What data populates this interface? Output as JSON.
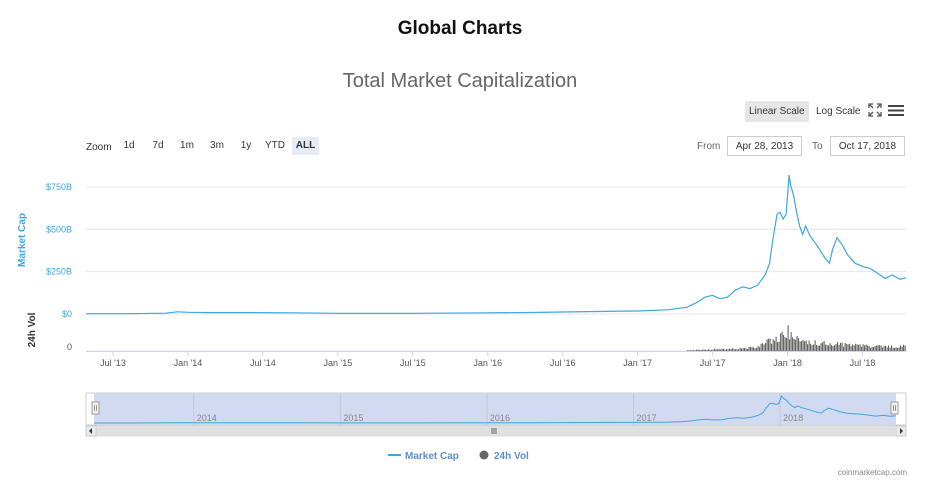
{
  "page": {
    "title": "Global Charts"
  },
  "toolbar": {
    "linear_scale": "Linear Scale",
    "log_scale": "Log Scale",
    "fullscreen_icon": "fullscreen-icon",
    "menu_icon": "menu-icon"
  },
  "range_selector": {
    "zoom_label": "Zoom",
    "buttons": [
      "1d",
      "7d",
      "1m",
      "3m",
      "1y",
      "YTD",
      "ALL"
    ],
    "selected": "ALL",
    "from_label": "From",
    "from_value": "Apr 28, 2013",
    "to_label": "To",
    "to_value": "Oct 17, 2018"
  },
  "colors": {
    "market_cap": "#3fa7dc",
    "volume": "#555555",
    "navigator_fill": "#ccd6ee"
  },
  "chart_data": {
    "type": "line",
    "title": "Total Market Capitalization",
    "x_range": [
      2013.32,
      2018.79
    ],
    "x_ticks": [
      {
        "label": "Jul '13",
        "x": 2013.5
      },
      {
        "label": "Jan '14",
        "x": 2014.0
      },
      {
        "label": "Jul '14",
        "x": 2014.5
      },
      {
        "label": "Jan '15",
        "x": 2015.0
      },
      {
        "label": "Jul '15",
        "x": 2015.5
      },
      {
        "label": "Jan '16",
        "x": 2016.0
      },
      {
        "label": "Jul '16",
        "x": 2016.5
      },
      {
        "label": "Jan '17",
        "x": 2017.0
      },
      {
        "label": "Jul '17",
        "x": 2017.5
      },
      {
        "label": "Jan '18",
        "x": 2018.0
      },
      {
        "label": "Jul '18",
        "x": 2018.5
      }
    ],
    "market_cap": {
      "name": "Market Cap",
      "axis_label": "Market Cap",
      "ylim": [
        0,
        850
      ],
      "unit": "B USD",
      "y_ticks": [
        {
          "label": "$0",
          "value": 0
        },
        {
          "label": "$250B",
          "value": 250
        },
        {
          "label": "$500B",
          "value": 500
        },
        {
          "label": "$750B",
          "value": 750
        }
      ],
      "x": [
        2013.32,
        2013.6,
        2013.85,
        2013.93,
        2014.0,
        2014.15,
        2014.4,
        2014.7,
        2015.0,
        2015.5,
        2016.0,
        2016.3,
        2016.5,
        2016.9,
        2017.0,
        2017.2,
        2017.33,
        2017.4,
        2017.45,
        2017.5,
        2017.55,
        2017.6,
        2017.65,
        2017.7,
        2017.75,
        2017.8,
        2017.85,
        2017.88,
        2017.9,
        2017.93,
        2017.95,
        2017.97,
        2017.99,
        2018.01,
        2018.02,
        2018.04,
        2018.06,
        2018.08,
        2018.1,
        2018.12,
        2018.15,
        2018.2,
        2018.25,
        2018.28,
        2018.3,
        2018.33,
        2018.37,
        2018.4,
        2018.45,
        2018.5,
        2018.55,
        2018.6,
        2018.65,
        2018.7,
        2018.75,
        2018.79
      ],
      "values": [
        1.5,
        1.5,
        5,
        13,
        10,
        8,
        8,
        7,
        4,
        4,
        7,
        9,
        12,
        17,
        18,
        25,
        40,
        70,
        100,
        110,
        90,
        100,
        140,
        160,
        150,
        170,
        230,
        300,
        430,
        590,
        600,
        560,
        590,
        820,
        760,
        700,
        600,
        520,
        470,
        520,
        460,
        400,
        330,
        300,
        380,
        450,
        400,
        350,
        300,
        280,
        270,
        240,
        210,
        230,
        205,
        215
      ]
    },
    "volume": {
      "name": "24h Vol",
      "axis_label": "24h Vol",
      "y_ticks": [
        {
          "label": "0",
          "value": 0
        }
      ],
      "ylim": [
        0,
        60
      ],
      "unit": "B USD",
      "x": [
        2017.33,
        2017.5,
        2017.65,
        2017.8,
        2017.9,
        2017.95,
        2018.0,
        2018.05,
        2018.1,
        2018.2,
        2018.3,
        2018.4,
        2018.5,
        2018.6,
        2018.7,
        2018.79
      ],
      "values": [
        2,
        4,
        6,
        10,
        30,
        40,
        50,
        35,
        25,
        20,
        18,
        16,
        14,
        12,
        11,
        13
      ]
    },
    "navigator": {
      "year_labels": [
        {
          "label": "2014",
          "x": 2014.0
        },
        {
          "label": "2015",
          "x": 2015.0
        },
        {
          "label": "2016",
          "x": 2016.0
        },
        {
          "label": "2017",
          "x": 2017.0
        },
        {
          "label": "2018",
          "x": 2018.0
        }
      ]
    },
    "legend": [
      "Market Cap",
      "24h Vol"
    ]
  },
  "footer": {
    "credits": "coinmarketcap.com"
  }
}
